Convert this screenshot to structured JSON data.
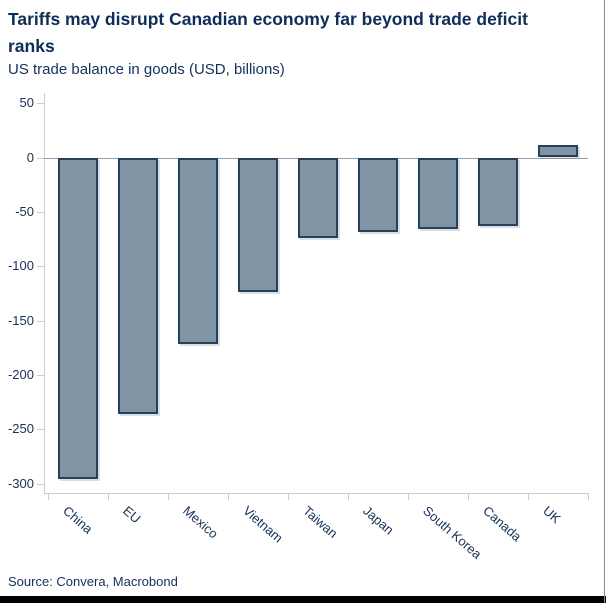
{
  "header": {
    "title": "Tariffs may disrupt Canadian economy far beyond trade deficit ranks",
    "subtitle": "US trade balance in goods (USD, billions)"
  },
  "footer": {
    "source": "Source: Convera, Macrobond"
  },
  "colors": {
    "text_navy": "#0e2d58",
    "bar_fill": "#8094a5",
    "bar_border": "#24425e",
    "axis_line": "#c9cdd2",
    "zero_line": "#9e9e9e",
    "bottom_bar": "#000000"
  },
  "chart_data": {
    "type": "bar",
    "title": "Tariffs may disrupt Canadian economy far beyond trade deficit ranks",
    "subtitle": "US trade balance in goods (USD, billions)",
    "categories": [
      "China",
      "EU",
      "Mexico",
      "Vietnam",
      "Taiwan",
      "Japan",
      "South Korea",
      "Canada",
      "UK"
    ],
    "values": [
      -295.4,
      -235.6,
      -171.8,
      -123.5,
      -73.9,
      -68.5,
      -66.0,
      -63.3,
      11.9
    ],
    "xlabel": "",
    "ylabel": "US trade balance in goods (USD, billions)",
    "ylim": [
      -309,
      59
    ],
    "yticks": [
      50,
      0,
      -50,
      -100,
      -150,
      -200,
      -250,
      -300
    ],
    "grid": false,
    "legend": false,
    "x_tick_label_rotation_deg": 41,
    "source": "Source: Convera, Macrobond"
  }
}
